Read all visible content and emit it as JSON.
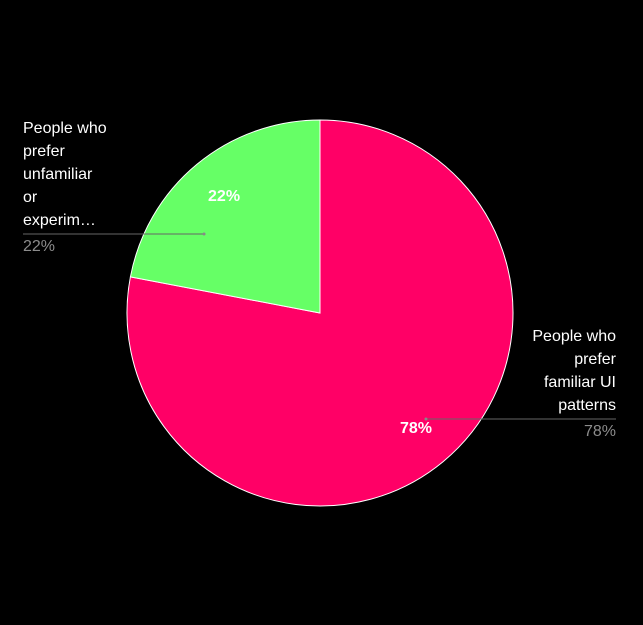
{
  "chart_data": {
    "type": "pie",
    "categories": [
      "People who prefer familiar UI patterns",
      "People who prefer unfamiliar or experim…"
    ],
    "values": [
      78,
      22
    ],
    "value_labels": [
      "78%",
      "22%"
    ],
    "colors": [
      "#ff0066",
      "#66ff66"
    ]
  }
}
